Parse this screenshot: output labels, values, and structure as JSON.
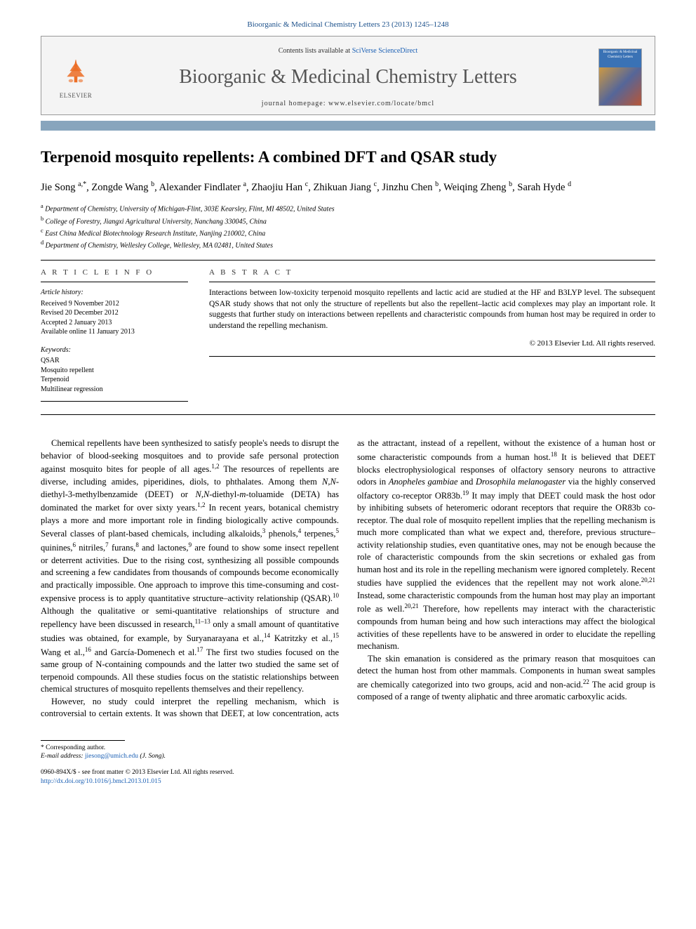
{
  "citation": "Bioorganic & Medicinal Chemistry Letters 23 (2013) 1245–1248",
  "header": {
    "contents_prefix": "Contents lists available at ",
    "contents_link": "SciVerse ScienceDirect",
    "journal": "Bioorganic & Medicinal Chemistry Letters",
    "homepage_prefix": "journal homepage: ",
    "homepage_url": "www.elsevier.com/locate/bmcl",
    "publisher": "ELSEVIER",
    "colors": {
      "accent_bar": "#88a5bd",
      "link": "#1a5fb4",
      "logo_orange": "#ec6e26",
      "box_bg": "#f4f4f4",
      "box_border": "#999999"
    }
  },
  "title": "Terpenoid mosquito repellents: A combined DFT and QSAR study",
  "authors_html": "Jie Song <sup>a,*</sup>, Zongde Wang <sup>b</sup>, Alexander Findlater <sup>a</sup>, Zhaojiu Han <sup>c</sup>, Zhikuan Jiang <sup>c</sup>, Jinzhu Chen <sup>b</sup>, Weiqing Zheng <sup>b</sup>, Sarah Hyde <sup>d</sup>",
  "affiliations": [
    {
      "sup": "a",
      "text": "Department of Chemistry, University of Michigan-Flint, 303E Kearsley, Flint, MI 48502, United States"
    },
    {
      "sup": "b",
      "text": "College of Forestry, Jiangxi Agricultural University, Nanchang 330045, China"
    },
    {
      "sup": "c",
      "text": "East China Medical Biotechnology Research Institute, Nanjing 210002, China"
    },
    {
      "sup": "d",
      "text": "Department of Chemistry, Wellesley College, Wellesley, MA 02481, United States"
    }
  ],
  "article_info": {
    "heading": "A R T I C L E   I N F O",
    "history_head": "Article history:",
    "history": [
      "Received 9 November 2012",
      "Revised 20 December 2012",
      "Accepted 2 January 2013",
      "Available online 11 January 2013"
    ],
    "keywords_head": "Keywords:",
    "keywords": [
      "QSAR",
      "Mosquito repellent",
      "Terpenoid",
      "Multilinear regression"
    ]
  },
  "abstract": {
    "heading": "A B S T R A C T",
    "text": "Interactions between low-toxicity terpenoid mosquito repellents and lactic acid are studied at the HF and B3LYP level. The subsequent QSAR study shows that not only the structure of repellents but also the repellent–lactic acid complexes may play an important role. It suggests that further study on interactions between repellents and characteristic compounds from human host may be required in order to understand the repelling mechanism.",
    "copyright": "© 2013 Elsevier Ltd. All rights reserved."
  },
  "body": {
    "p1": "Chemical repellents have been synthesized to satisfy people's needs to disrupt the behavior of blood-seeking mosquitoes and to provide safe personal protection against mosquito bites for people of all ages.<sup>1,2</sup> The resources of repellents are diverse, including amides, piperidines, diols, to phthalates. Among them <i>N,N</i>-diethyl-3-methylbenzamide (DEET) or <i>N,N</i>-diethyl-<i>m</i>-toluamide (DETA) has dominated the market for over sixty years.<sup>1,2</sup> In recent years, botanical chemistry plays a more and more important role in finding biologically active compounds. Several classes of plant-based chemicals, including alkaloids,<sup>3</sup> phenols,<sup>4</sup> terpenes,<sup>5</sup> quinines,<sup>6</sup> nitriles,<sup>7</sup> furans,<sup>8</sup> and lactones,<sup>9</sup> are found to show some insect repellent or deterrent activities. Due to the rising cost, synthesizing all possible compounds and screening a few candidates from thousands of compounds become economically and practically impossible. One approach to improve this time-consuming and cost-expensive process is to apply quantitative structure–activity relationship (QSAR).<sup>10</sup> Although the qualitative or semi-quantitative relationships of structure and repellency have been discussed in research,<sup>11–13</sup> only a small amount of quantitative studies was obtained, for example, by Suryanarayana et al.,<sup>14</sup> Katritzky et al.,<sup>15</sup> Wang et al.,<sup>16</sup> and García-Domenech et al.<sup>17</sup> The first two studies focused on the same group of N-containing compounds and the latter two studied the same set of terpenoid compounds. All these studies focus on the statistic relationships between chemical structures of mosquito repellents themselves and their repellency.",
    "p2": "However, no study could interpret the repelling mechanism, which is controversial to certain extents. It was shown that DEET, at low concentration, acts as the attractant, instead of a repellent, without the existence of a human host or some characteristic compounds from a human host.<sup>18</sup> It is believed that DEET blocks electrophysiological responses of olfactory sensory neurons to attractive odors in <i>Anopheles gambiae</i> and <i>Drosophila melanogaster</i> via the highly conserved olfactory co-receptor OR83b.<sup>19</sup> It may imply that DEET could mask the host odor by inhibiting subsets of heteromeric odorant receptors that require the OR83b co-receptor. The dual role of mosquito repellent implies that the repelling mechanism is much more complicated than what we expect and, therefore, previous structure–activity relationship studies, even quantitative ones, may not be enough because the role of characteristic compounds from the skin secretions or exhaled gas from human host and its role in the repelling mechanism were ignored completely. Recent studies have supplied the evidences that the repellent may not work alone.<sup>20,21</sup> Instead, some characteristic compounds from the human host may play an important role as well.<sup>20,21</sup> Therefore, how repellents may interact with the characteristic compounds from human being and how such interactions may affect the biological activities of these repellents have to be answered in order to elucidate the repelling mechanism.",
    "p3": "The skin emanation is considered as the primary reason that mosquitoes can detect the human host from other mammals. Components in human sweat samples are chemically categorized into two groups, acid and non-acid.<sup>22</sup> The acid group is composed of a range of twenty aliphatic and three aromatic carboxylic acids."
  },
  "footer": {
    "corr": "Corresponding author.",
    "email_label": "E-mail address:",
    "email": "jiesong@umich.edu",
    "email_who": "(J. Song).",
    "issn_line": "0960-894X/$ - see front matter © 2013 Elsevier Ltd. All rights reserved.",
    "doi_url": "http://dx.doi.org/10.1016/j.bmcl.2013.01.015"
  }
}
